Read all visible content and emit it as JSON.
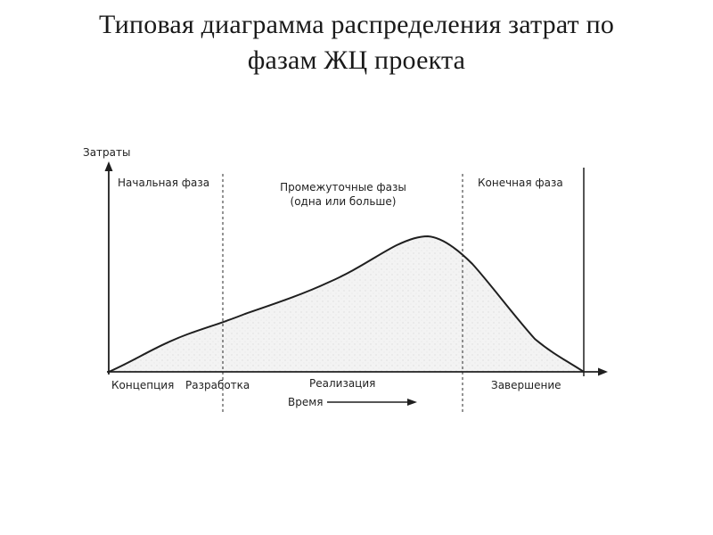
{
  "slide": {
    "title_line1": "Типовая диаграмма распределения затрат по",
    "title_line2": "фазам ЖЦ проекта"
  },
  "diagram": {
    "y_axis_label": "Затраты",
    "x_axis_label": "Время",
    "phases": {
      "initial": "Начальная фаза",
      "intermediate_line1": "Промежуточные фазы",
      "intermediate_line2": "(одна или больше)",
      "final": "Конечная фаза"
    },
    "stages": [
      "Концепция",
      "Разработка",
      "Реализация",
      "Завершение"
    ],
    "colors": {
      "line": "#1f1f1f",
      "fill": "#f1f1f1"
    }
  }
}
